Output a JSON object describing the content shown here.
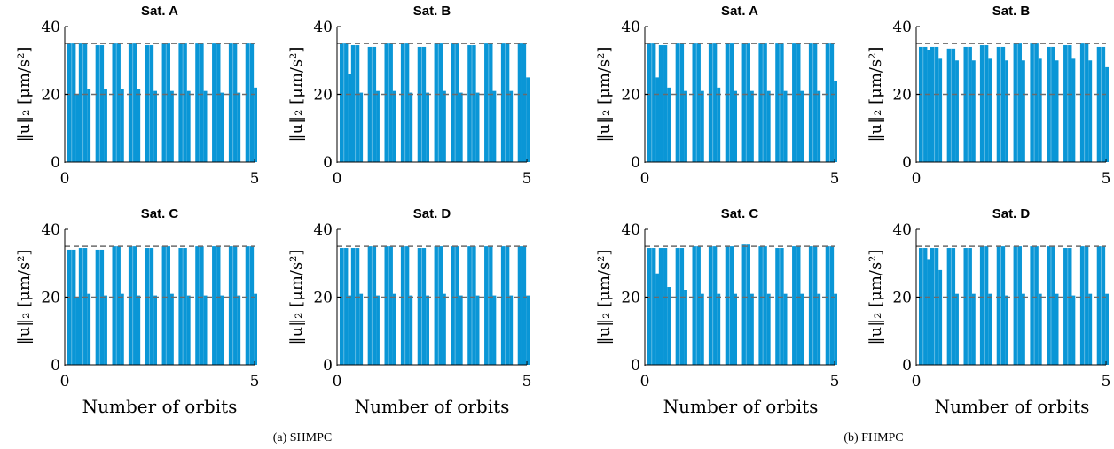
{
  "colors": {
    "bar": "#0a96d6",
    "reference": "#6b6b6b",
    "axis": "#000000"
  },
  "groups": [
    {
      "caption": "(a) SHMPC",
      "xlabel": "Number of orbits"
    },
    {
      "caption": "(b) FHMPC",
      "xlabel": "Number of orbits"
    }
  ],
  "chart_data": [
    {
      "group": 0,
      "type": "bar",
      "title": "Sat. A",
      "ylabel": "‖u‖₂ [μm/s²]",
      "xlabel": "",
      "xlim": [
        0,
        5
      ],
      "ylim": [
        0,
        40
      ],
      "xticks": [
        0,
        5
      ],
      "yticks": [
        0,
        20,
        40
      ],
      "reference_lines": [
        20,
        35
      ],
      "x": [
        0.07,
        0.37,
        0.81,
        1.25,
        1.68,
        2.12,
        2.56,
        3.0,
        3.44,
        3.88,
        4.32,
        4.76
      ],
      "peak": [
        35,
        35,
        34.5,
        35,
        35,
        34.5,
        35,
        35,
        35,
        35,
        35,
        35
      ],
      "plateau": [
        20,
        21.5,
        21.5,
        21.5,
        21.5,
        21,
        21,
        21,
        21,
        20.5,
        20.5,
        22
      ]
    },
    {
      "group": 0,
      "type": "bar",
      "title": "Sat. B",
      "ylabel": "‖u‖₂ [μm/s²]",
      "xlabel": "",
      "xlim": [
        0,
        5
      ],
      "ylim": [
        0,
        40
      ],
      "xticks": [
        0,
        5
      ],
      "yticks": [
        0,
        20,
        40
      ],
      "reference_lines": [
        20,
        35
      ],
      "x": [
        0.07,
        0.37,
        0.81,
        1.25,
        1.68,
        2.12,
        2.56,
        3.0,
        3.44,
        3.88,
        4.32,
        4.76
      ],
      "peak": [
        35,
        34.5,
        34,
        35,
        35,
        34,
        35,
        35,
        34.5,
        35,
        35,
        35
      ],
      "plateau": [
        26,
        20.5,
        21,
        21,
        20.5,
        20.5,
        21,
        20.5,
        20.5,
        21,
        21,
        25
      ]
    },
    {
      "group": 0,
      "type": "bar",
      "title": "Sat. C",
      "ylabel": "‖u‖₂ [μm/s²]",
      "xlabel": "Number of orbits",
      "xlim": [
        0,
        5
      ],
      "ylim": [
        0,
        40
      ],
      "xticks": [
        0,
        5
      ],
      "yticks": [
        0,
        20,
        40
      ],
      "reference_lines": [
        20,
        35
      ],
      "x": [
        0.07,
        0.37,
        0.81,
        1.25,
        1.68,
        2.12,
        2.56,
        3.0,
        3.44,
        3.88,
        4.32,
        4.76
      ],
      "peak": [
        34,
        34.5,
        34,
        35,
        35,
        34.5,
        35,
        34.5,
        35,
        35,
        35,
        35
      ],
      "plateau": [
        20,
        21,
        20.5,
        21,
        20.5,
        20.5,
        21,
        20.5,
        20.5,
        20.5,
        20.5,
        21
      ]
    },
    {
      "group": 0,
      "type": "bar",
      "title": "Sat. D",
      "ylabel": "‖u‖₂ [μm/s²]",
      "xlabel": "Number of orbits",
      "xlim": [
        0,
        5
      ],
      "ylim": [
        0,
        40
      ],
      "xticks": [
        0,
        5
      ],
      "yticks": [
        0,
        20,
        40
      ],
      "reference_lines": [
        20,
        35
      ],
      "x": [
        0.07,
        0.37,
        0.81,
        1.25,
        1.68,
        2.12,
        2.56,
        3.0,
        3.44,
        3.88,
        4.32,
        4.76
      ],
      "peak": [
        34.5,
        34.5,
        35,
        35,
        35,
        34.5,
        35,
        35,
        35,
        35,
        35,
        35
      ],
      "plateau": [
        20.5,
        21,
        20.5,
        21,
        20.5,
        20.5,
        21,
        20.5,
        20.5,
        20.5,
        20.5,
        20.5
      ]
    },
    {
      "group": 1,
      "type": "bar",
      "title": "Sat. A",
      "ylabel": "‖u‖₂ [μm/s²]",
      "xlabel": "",
      "xlim": [
        0,
        5
      ],
      "ylim": [
        0,
        40
      ],
      "xticks": [
        0,
        5
      ],
      "yticks": [
        0,
        20,
        40
      ],
      "reference_lines": [
        20,
        35
      ],
      "x": [
        0.07,
        0.37,
        0.81,
        1.25,
        1.68,
        2.12,
        2.56,
        3.0,
        3.44,
        3.88,
        4.32,
        4.76
      ],
      "peak": [
        35,
        34.5,
        35,
        35,
        35,
        35,
        35,
        35,
        35,
        35,
        35,
        35
      ],
      "plateau": [
        25,
        22,
        21,
        21,
        22,
        21,
        21,
        21,
        21,
        21,
        21,
        24
      ]
    },
    {
      "group": 1,
      "type": "bar",
      "title": "Sat. B",
      "ylabel": "‖u‖₂ [μm/s²]",
      "xlabel": "",
      "xlim": [
        0,
        5
      ],
      "ylim": [
        0,
        40
      ],
      "xticks": [
        0,
        5
      ],
      "yticks": [
        0,
        20,
        40
      ],
      "reference_lines": [
        20,
        35
      ],
      "x": [
        0.07,
        0.37,
        0.81,
        1.25,
        1.68,
        2.12,
        2.56,
        3.0,
        3.44,
        3.88,
        4.32,
        4.76
      ],
      "peak": [
        34,
        34,
        33.5,
        34,
        34.5,
        34,
        35,
        35,
        34,
        34.5,
        35,
        34
      ],
      "plateau": [
        33,
        30.5,
        30,
        30,
        30.5,
        30,
        30,
        30.5,
        30,
        30.5,
        30,
        28
      ]
    },
    {
      "group": 1,
      "type": "bar",
      "title": "Sat. C",
      "ylabel": "‖u‖₂ [μm/s²]",
      "xlabel": "Number of orbits",
      "xlim": [
        0,
        5
      ],
      "ylim": [
        0,
        40
      ],
      "xticks": [
        0,
        5
      ],
      "yticks": [
        0,
        20,
        40
      ],
      "reference_lines": [
        20,
        35
      ],
      "x": [
        0.07,
        0.37,
        0.81,
        1.25,
        1.68,
        2.12,
        2.56,
        3.0,
        3.44,
        3.88,
        4.32,
        4.76
      ],
      "peak": [
        34.5,
        34.5,
        34.5,
        35,
        35,
        35,
        35.5,
        35,
        34.5,
        35,
        35,
        35
      ],
      "plateau": [
        27,
        23,
        22,
        21,
        21,
        21,
        21,
        21,
        21,
        21,
        21,
        21
      ]
    },
    {
      "group": 1,
      "type": "bar",
      "title": "Sat. D",
      "ylabel": "‖u‖₂ [μm/s²]",
      "xlabel": "Number of orbits",
      "xlim": [
        0,
        5
      ],
      "ylim": [
        0,
        40
      ],
      "xticks": [
        0,
        5
      ],
      "yticks": [
        0,
        20,
        40
      ],
      "reference_lines": [
        20,
        35
      ],
      "x": [
        0.07,
        0.37,
        0.81,
        1.25,
        1.68,
        2.12,
        2.56,
        3.0,
        3.44,
        3.88,
        4.32,
        4.76
      ],
      "peak": [
        34.5,
        34.5,
        34.5,
        34.5,
        35,
        35,
        35,
        35,
        35,
        34.5,
        35,
        35
      ],
      "plateau": [
        31,
        28,
        21,
        21,
        21,
        20.5,
        21,
        21,
        21,
        20.5,
        21,
        21
      ]
    }
  ]
}
